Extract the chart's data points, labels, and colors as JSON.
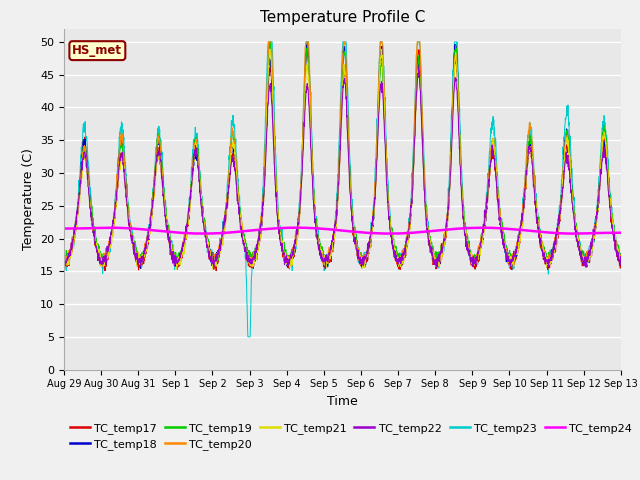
{
  "title": "Temperature Profile C",
  "xlabel": "Time",
  "ylabel": "Temperature (C)",
  "ylim": [
    0,
    52
  ],
  "yticks": [
    0,
    5,
    10,
    15,
    20,
    25,
    30,
    35,
    40,
    45,
    50
  ],
  "x_labels": [
    "Aug 29",
    "Aug 30",
    "Aug 31",
    "Sep 1",
    "Sep 2",
    "Sep 3",
    "Sep 4",
    "Sep 5",
    "Sep 6",
    "Sep 7",
    "Sep 8",
    "Sep 9",
    "Sep 10",
    "Sep 11",
    "Sep 12",
    "Sep 13"
  ],
  "series_colors": {
    "TC_temp17": "#dd0000",
    "TC_temp18": "#0000cc",
    "TC_temp19": "#00cc00",
    "TC_temp20": "#ff8800",
    "TC_temp21": "#dddd00",
    "TC_temp22": "#9900cc",
    "TC_temp23": "#00cccc",
    "TC_temp24": "#ff00ff"
  },
  "annotation_text": "HS_met",
  "bg_color": "#e8e8e8",
  "num_days": 15,
  "ppd": 144
}
